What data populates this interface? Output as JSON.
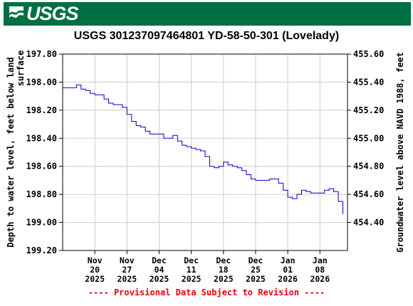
{
  "header": {
    "logo_text": "USGS",
    "brand_color": "#006f41"
  },
  "footer": {
    "provisional": "---- Provisional Data Subject to Revision ----",
    "color": "#e8000b"
  },
  "chart_data": {
    "type": "line",
    "title": "USGS 301237097464801 YD-58-50-301 (Lovelady)",
    "ylabel": "Depth to water level, feet below land surface",
    "ylabel_lines": [
      "Depth to water level, feet below land",
      "surface"
    ],
    "y2label": "Groundwater level above NAVD 1988, feet",
    "ylim": [
      197.8,
      199.2
    ],
    "y_inverted": true,
    "yticks": [
      "197.80",
      "198.00",
      "198.20",
      "198.40",
      "198.60",
      "198.80",
      "199.00",
      "199.20"
    ],
    "y2lim": [
      455.6,
      454.2
    ],
    "y2ticks": [
      "455.60",
      "455.40",
      "455.20",
      "455.00",
      "454.80",
      "454.60",
      "454.40"
    ],
    "xlim": [
      "2025-11-13",
      "2026-01-14"
    ],
    "xticks": [
      {
        "date": "2025-11-20",
        "lines": [
          "Nov",
          "20",
          "2025"
        ]
      },
      {
        "date": "2025-11-27",
        "lines": [
          "Nov",
          "27",
          "2025"
        ]
      },
      {
        "date": "2025-12-04",
        "lines": [
          "Dec",
          "04",
          "2025"
        ]
      },
      {
        "date": "2025-12-11",
        "lines": [
          "Dec",
          "11",
          "2025"
        ]
      },
      {
        "date": "2025-12-18",
        "lines": [
          "Dec",
          "18",
          "2025"
        ]
      },
      {
        "date": "2025-12-25",
        "lines": [
          "Dec",
          "25",
          "2025"
        ]
      },
      {
        "date": "2026-01-01",
        "lines": [
          "Jan",
          "01",
          "2026"
        ]
      },
      {
        "date": "2026-01-08",
        "lines": [
          "Jan",
          "08",
          "2026"
        ]
      }
    ],
    "grid": true,
    "line_color": "#0000cc",
    "series": [
      {
        "x": [
          "2025-11-13",
          "2025-11-14",
          "2025-11-15",
          "2025-11-16",
          "2025-11-17",
          "2025-11-18",
          "2025-11-19",
          "2025-11-20",
          "2025-11-21",
          "2025-11-22",
          "2025-11-23",
          "2025-11-24",
          "2025-11-25",
          "2025-11-26",
          "2025-11-27",
          "2025-11-28",
          "2025-11-29",
          "2025-11-30",
          "2025-12-01",
          "2025-12-02",
          "2025-12-03",
          "2025-12-04",
          "2025-12-05",
          "2025-12-06",
          "2025-12-07",
          "2025-12-08",
          "2025-12-09",
          "2025-12-10",
          "2025-12-11",
          "2025-12-12",
          "2025-12-13",
          "2025-12-14",
          "2025-12-15",
          "2025-12-16",
          "2025-12-17",
          "2025-12-18",
          "2025-12-19",
          "2025-12-20",
          "2025-12-21",
          "2025-12-22",
          "2025-12-23",
          "2025-12-24",
          "2025-12-25",
          "2025-12-26",
          "2025-12-27",
          "2025-12-28",
          "2025-12-29",
          "2025-12-30",
          "2025-12-31",
          "2026-01-01",
          "2026-01-02",
          "2026-01-03",
          "2026-01-04",
          "2026-01-05",
          "2026-01-06",
          "2026-01-07",
          "2026-01-08",
          "2026-01-09",
          "2026-01-10",
          "2026-01-11",
          "2026-01-12",
          "2026-01-13"
        ],
        "y": [
          198.04,
          198.04,
          198.04,
          198.02,
          198.05,
          198.06,
          198.08,
          198.09,
          198.09,
          198.12,
          198.15,
          198.16,
          198.16,
          198.18,
          198.23,
          198.28,
          198.31,
          198.32,
          198.35,
          198.37,
          198.37,
          198.37,
          198.4,
          198.4,
          198.38,
          198.42,
          198.45,
          198.46,
          198.47,
          198.48,
          198.49,
          198.53,
          198.6,
          198.61,
          198.6,
          198.57,
          198.59,
          198.6,
          198.61,
          198.63,
          198.66,
          198.69,
          198.7,
          198.7,
          198.7,
          198.69,
          198.69,
          198.72,
          198.77,
          198.82,
          198.83,
          198.8,
          198.77,
          198.78,
          198.79,
          198.79,
          198.79,
          198.77,
          198.76,
          198.78,
          198.85,
          198.94
        ]
      }
    ]
  }
}
